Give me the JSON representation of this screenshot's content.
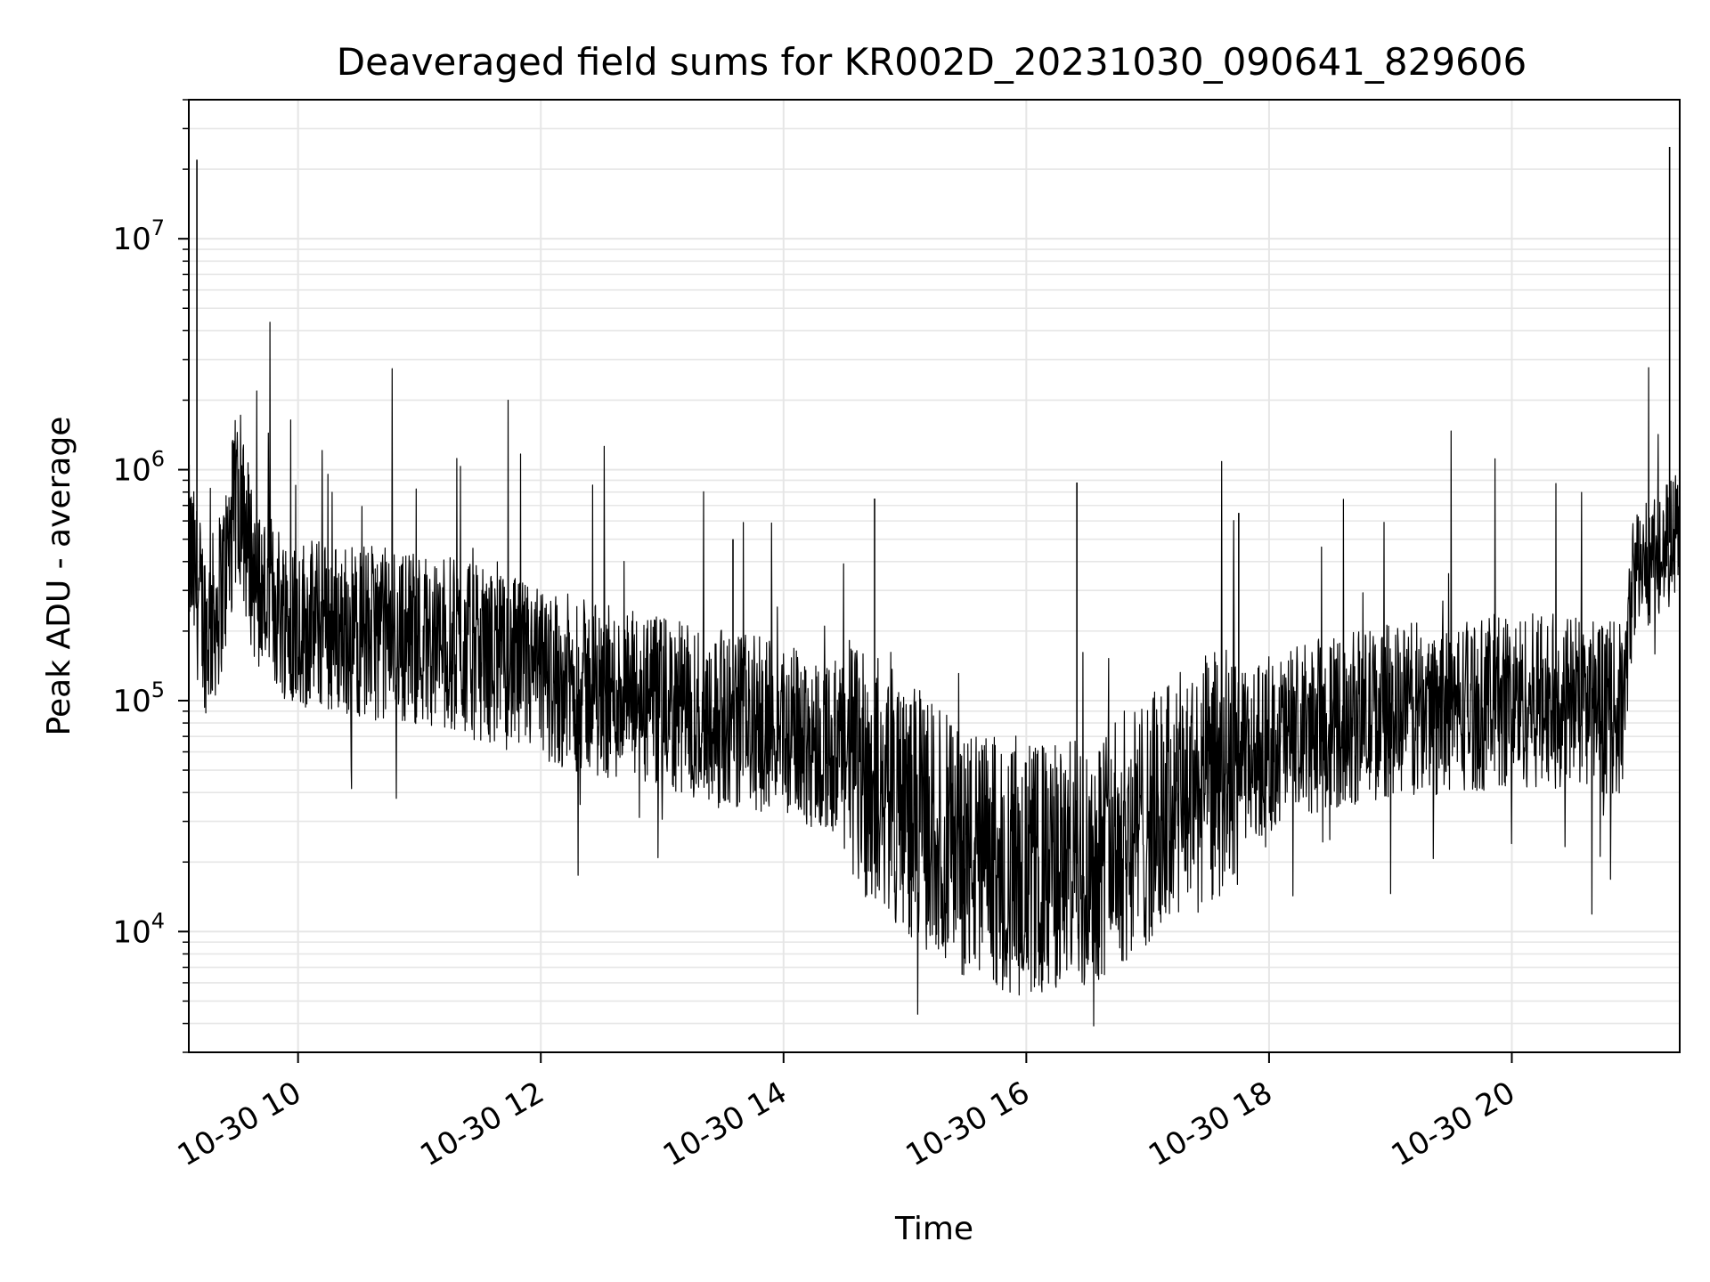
{
  "chart_data": {
    "type": "line",
    "title": "Deaveraged field sums for KR002D_20231030_090641_829606",
    "xlabel": "Time",
    "ylabel": "Peak ADU - average",
    "x_range": [
      "2023-10-30 09:06",
      "2023-10-30 21:23"
    ],
    "y_range": [
      3000,
      40000000
    ],
    "yscale": "log",
    "grid": true,
    "grid_minor": true,
    "legend": false,
    "colors": {
      "line": "#000000",
      "grid": "#e6e6e6",
      "axes": "#000000"
    },
    "x_ticks": [
      {
        "value": "2023-10-30 10:00",
        "label": "10-30 10"
      },
      {
        "value": "2023-10-30 12:00",
        "label": "10-30 12"
      },
      {
        "value": "2023-10-30 14:00",
        "label": "10-30 14"
      },
      {
        "value": "2023-10-30 16:00",
        "label": "10-30 16"
      },
      {
        "value": "2023-10-30 18:00",
        "label": "10-30 18"
      },
      {
        "value": "2023-10-30 20:00",
        "label": "10-30 20"
      }
    ],
    "y_ticks": [
      {
        "value": 10000,
        "base": "10",
        "exp": "4"
      },
      {
        "value": 100000,
        "base": "10",
        "exp": "5"
      },
      {
        "value": 1000000,
        "base": "10",
        "exp": "6"
      },
      {
        "value": 10000000,
        "base": "10",
        "exp": "7"
      }
    ],
    "series": [
      {
        "x": [
          "2023-10-30 09:06",
          "2023-10-30 09:10",
          "2023-10-30 09:15",
          "2023-10-30 09:20",
          "2023-10-30 09:25",
          "2023-10-30 09:30",
          "2023-10-30 09:40",
          "2023-10-30 10:00",
          "2023-10-30 10:30",
          "2023-10-30 11:00",
          "2023-10-30 11:30",
          "2023-10-30 12:00",
          "2023-10-30 12:30",
          "2023-10-30 13:00",
          "2023-10-30 13:30",
          "2023-10-30 14:00",
          "2023-10-30 14:30",
          "2023-10-30 15:00",
          "2023-10-30 15:30",
          "2023-10-30 16:00",
          "2023-10-30 16:30",
          "2023-10-30 17:00",
          "2023-10-30 17:30",
          "2023-10-30 18:00",
          "2023-10-30 18:30",
          "2023-10-30 19:00",
          "2023-10-30 19:30",
          "2023-10-30 20:00",
          "2023-10-30 20:30",
          "2023-10-30 20:55",
          "2023-10-30 21:00",
          "2023-10-30 21:10",
          "2023-10-30 21:20",
          "2023-10-30 21:23"
        ],
        "y": [
          450000,
          300000,
          200000,
          250000,
          400000,
          800000,
          300000,
          220000,
          200000,
          190000,
          160000,
          130000,
          110000,
          95000,
          85000,
          75000,
          60000,
          35000,
          22000,
          18000,
          20000,
          30000,
          45000,
          65000,
          80000,
          90000,
          95000,
          100000,
          100000,
          90000,
          350000,
          420000,
          500000,
          550000
        ]
      }
    ],
    "spikes": [
      {
        "x": "2023-10-30 09:10",
        "y": 22000000
      },
      {
        "x": "2023-10-30 09:28",
        "y": 1300000
      },
      {
        "x": "2023-10-30 13:35",
        "y": 500000
      },
      {
        "x": "2023-10-30 14:45",
        "y": 750000
      },
      {
        "x": "2023-10-30 16:25",
        "y": 880000
      },
      {
        "x": "2023-10-30 17:45",
        "y": 650000
      },
      {
        "x": "2023-10-30 21:18",
        "y": 25000000
      }
    ]
  }
}
